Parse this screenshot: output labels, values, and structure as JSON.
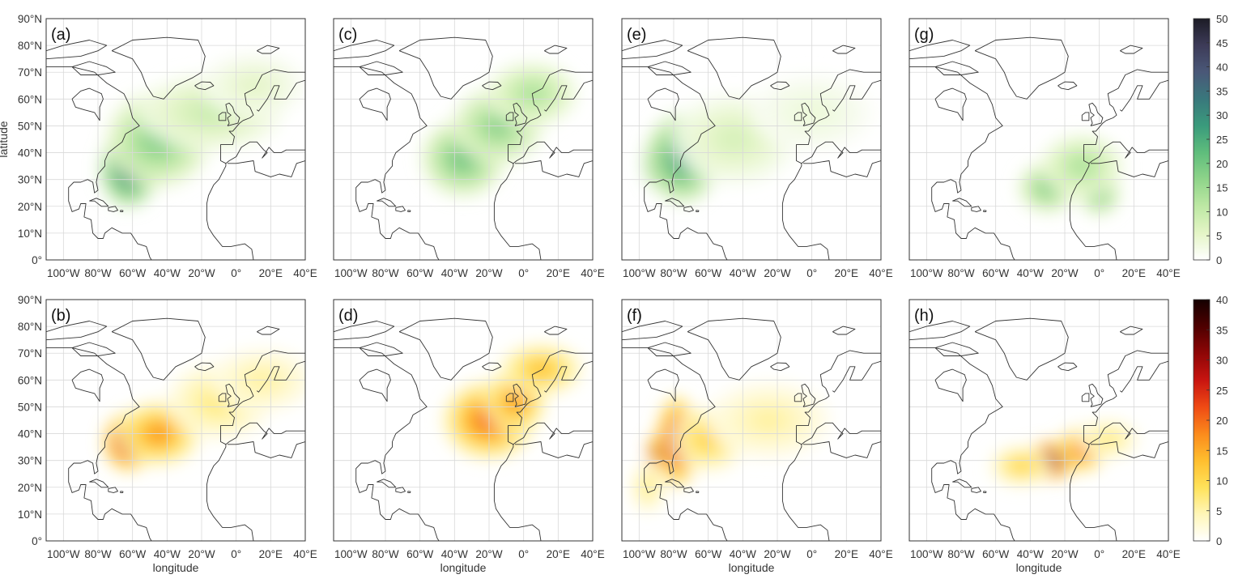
{
  "chart_data": {
    "type": "heatmap",
    "panels": [
      {
        "id": "a",
        "label": "(a)",
        "row": 1,
        "col": 1,
        "colormap": "green",
        "hotspots": [
          {
            "lon": -62,
            "lat": 34,
            "value": 38,
            "rlon": 14,
            "rlat": 12
          },
          {
            "lon": -45,
            "lat": 45,
            "value": 20,
            "rlon": 25,
            "rlat": 15
          },
          {
            "lon": -15,
            "lat": 55,
            "value": 10,
            "rlon": 35,
            "rlat": 12
          },
          {
            "lon": 10,
            "lat": 65,
            "value": 6,
            "rlon": 25,
            "rlat": 10
          }
        ]
      },
      {
        "id": "b",
        "label": "(b)",
        "row": 2,
        "col": 1,
        "colormap": "hot",
        "hotspots": [
          {
            "lon": -62,
            "lat": 37,
            "value": 35,
            "rlon": 12,
            "rlat": 9
          },
          {
            "lon": -45,
            "lat": 40,
            "value": 18,
            "rlon": 20,
            "rlat": 10
          },
          {
            "lon": -10,
            "lat": 52,
            "value": 8,
            "rlon": 25,
            "rlat": 12
          },
          {
            "lon": 15,
            "lat": 60,
            "value": 6,
            "rlon": 25,
            "rlat": 10
          }
        ]
      },
      {
        "id": "c",
        "label": "(c)",
        "row": 1,
        "col": 2,
        "colormap": "green",
        "hotspots": [
          {
            "lon": -35,
            "lat": 38,
            "value": 22,
            "rlon": 20,
            "rlat": 12
          },
          {
            "lon": -15,
            "lat": 50,
            "value": 18,
            "rlon": 22,
            "rlat": 12
          },
          {
            "lon": 5,
            "lat": 62,
            "value": 14,
            "rlon": 22,
            "rlat": 10
          }
        ]
      },
      {
        "id": "d",
        "label": "(d)",
        "row": 2,
        "col": 2,
        "colormap": "hot",
        "hotspots": [
          {
            "lon": -20,
            "lat": 45,
            "value": 22,
            "rlon": 22,
            "rlat": 12
          },
          {
            "lon": -5,
            "lat": 52,
            "value": 18,
            "rlon": 15,
            "rlat": 10
          },
          {
            "lon": 10,
            "lat": 64,
            "value": 14,
            "rlon": 20,
            "rlat": 8
          }
        ]
      },
      {
        "id": "e",
        "label": "(e)",
        "row": 1,
        "col": 3,
        "colormap": "green",
        "hotspots": [
          {
            "lon": -88,
            "lat": 36,
            "value": 48,
            "rlon": 8,
            "rlat": 8
          },
          {
            "lon": -75,
            "lat": 38,
            "value": 30,
            "rlon": 18,
            "rlat": 14
          },
          {
            "lon": -45,
            "lat": 45,
            "value": 8,
            "rlon": 30,
            "rlat": 14
          },
          {
            "lon": 0,
            "lat": 55,
            "value": 4,
            "rlon": 30,
            "rlat": 12
          }
        ]
      },
      {
        "id": "f",
        "label": "(f)",
        "row": 2,
        "col": 3,
        "colormap": "hot",
        "hotspots": [
          {
            "lon": -88,
            "lat": 33,
            "value": 40,
            "rlon": 6,
            "rlat": 6
          },
          {
            "lon": -78,
            "lat": 37,
            "value": 30,
            "rlon": 10,
            "rlat": 14
          },
          {
            "lon": -60,
            "lat": 38,
            "value": 12,
            "rlon": 18,
            "rlat": 10
          },
          {
            "lon": -25,
            "lat": 45,
            "value": 6,
            "rlon": 30,
            "rlat": 12
          },
          {
            "lon": -95,
            "lat": 20,
            "value": 8,
            "rlon": 8,
            "rlat": 8
          }
        ]
      },
      {
        "id": "g",
        "label": "(g)",
        "row": 1,
        "col": 4,
        "colormap": "green",
        "hotspots": [
          {
            "lon": -30,
            "lat": 27,
            "value": 20,
            "rlon": 14,
            "rlat": 8
          },
          {
            "lon": 0,
            "lat": 25,
            "value": 22,
            "rlon": 10,
            "rlat": 7
          },
          {
            "lon": -10,
            "lat": 35,
            "value": 14,
            "rlon": 20,
            "rlat": 10
          }
        ]
      },
      {
        "id": "h",
        "label": "(h)",
        "row": 2,
        "col": 4,
        "colormap": "hot",
        "hotspots": [
          {
            "lon": -28,
            "lat": 30,
            "value": 38,
            "rlon": 12,
            "rlat": 6
          },
          {
            "lon": -10,
            "lat": 34,
            "value": 22,
            "rlon": 12,
            "rlat": 7
          },
          {
            "lon": -45,
            "lat": 28,
            "value": 12,
            "rlon": 15,
            "rlat": 6
          },
          {
            "lon": 5,
            "lat": 38,
            "value": 8,
            "rlon": 15,
            "rlat": 6
          }
        ]
      }
    ],
    "x": {
      "range": [
        -110,
        40
      ],
      "ticks": [
        -100,
        -80,
        -60,
        -40,
        -20,
        0,
        20,
        40
      ],
      "tick_labels": [
        "100°W",
        "80°W",
        "60°W",
        "40°W",
        "20°W",
        "0°",
        "20°E",
        "40°E"
      ]
    },
    "y": {
      "range": [
        0,
        90
      ],
      "ticks": [
        0,
        10,
        20,
        30,
        40,
        50,
        60,
        70,
        80,
        90
      ],
      "tick_labels": [
        "0°",
        "10°N",
        "20°N",
        "30°N",
        "40°N",
        "50°N",
        "60°N",
        "70°N",
        "80°N",
        "90°N"
      ]
    },
    "xlabel": "longitude",
    "ylabel": "latitude",
    "grid": true,
    "colorbars": [
      {
        "row": 1,
        "colormap": "green",
        "range": [
          0,
          50
        ],
        "ticks": [
          0,
          5,
          10,
          15,
          20,
          25,
          30,
          35,
          40,
          45,
          50
        ],
        "tick_labels": [
          "0",
          "5",
          "10",
          "15",
          "20",
          "25",
          "30",
          "35",
          "40",
          "45",
          "50"
        ]
      },
      {
        "row": 2,
        "colormap": "hot",
        "range": [
          0,
          40
        ],
        "ticks": [
          0,
          5,
          10,
          15,
          20,
          25,
          30,
          35,
          40
        ],
        "tick_labels": [
          "0",
          "5",
          "10",
          "15",
          "20",
          "25",
          "30",
          "35",
          "40"
        ]
      }
    ],
    "colormaps": {
      "green": [
        "#ffffff",
        "#e4f5c6",
        "#bde8a4",
        "#8fd48a",
        "#5fbd7c",
        "#3a9b7c",
        "#39787c",
        "#4a5878",
        "#3d3b58",
        "#1c1c26"
      ],
      "hot": [
        "#ffffff",
        "#fff6b8",
        "#ffe25a",
        "#ffbe2e",
        "#fb8a1c",
        "#ef4a14",
        "#c81410",
        "#8e0606",
        "#4e0000",
        "#140000"
      ]
    }
  }
}
